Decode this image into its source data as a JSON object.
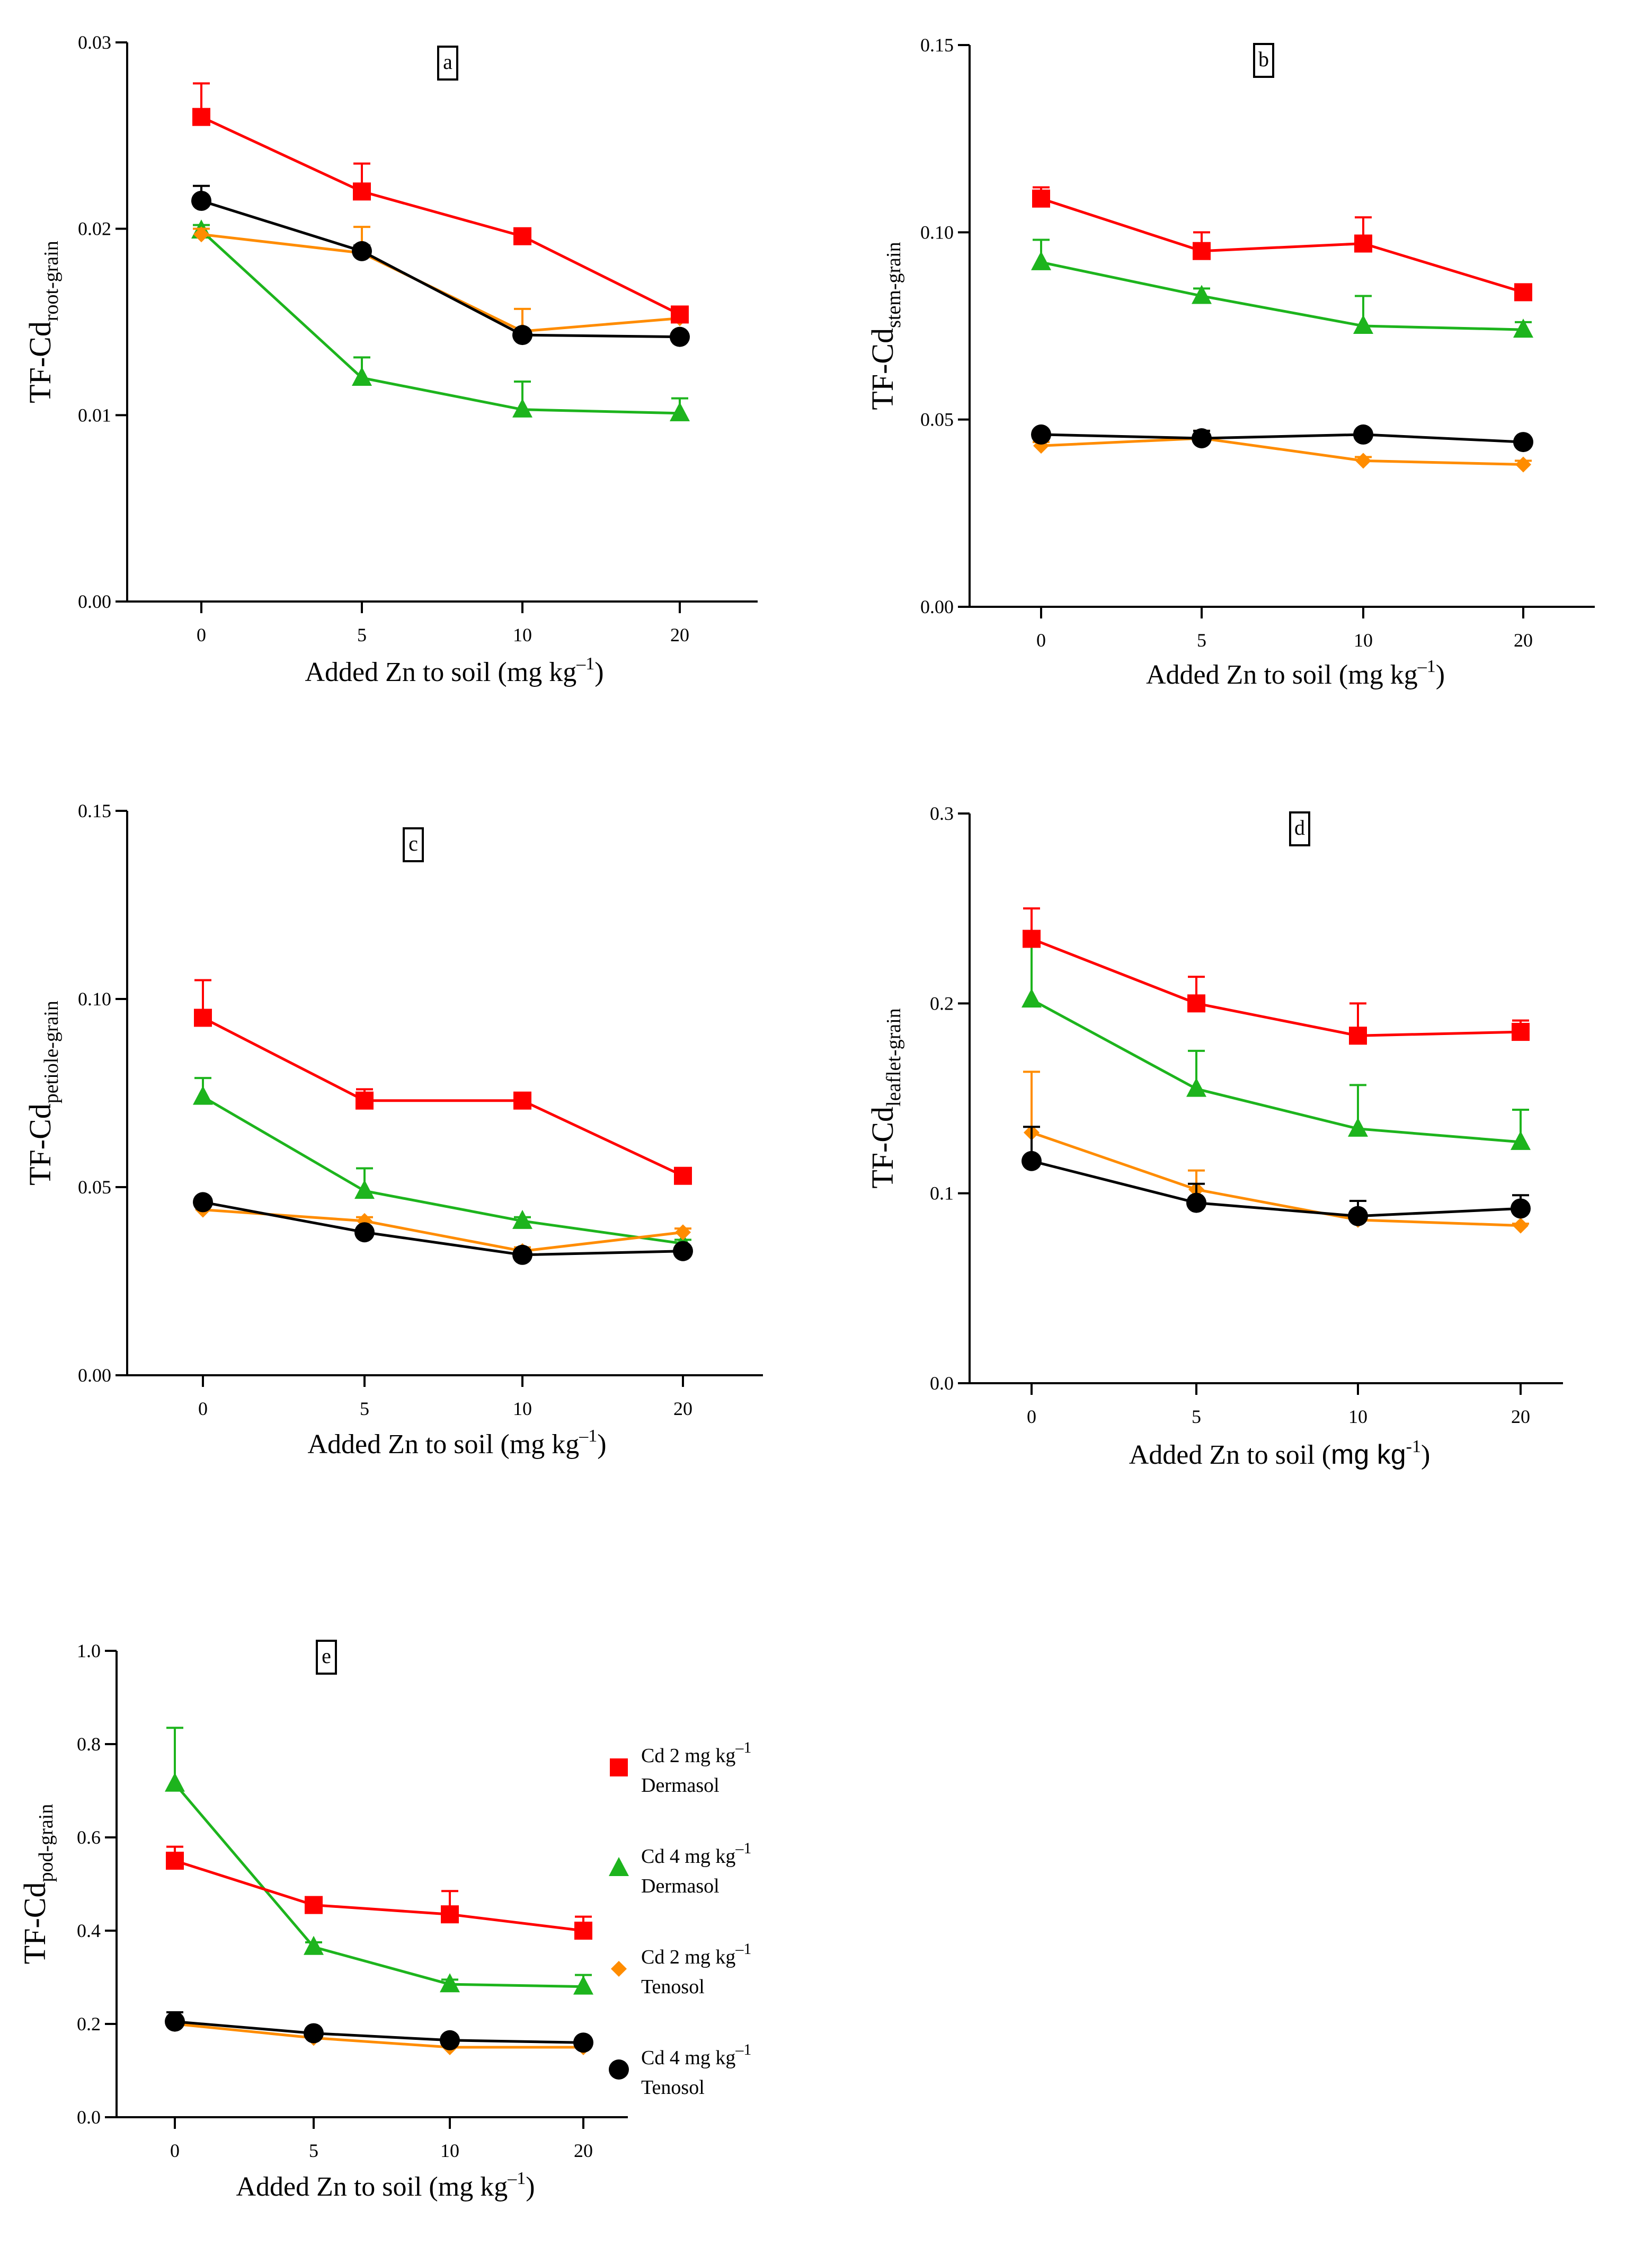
{
  "legend": [
    {
      "line1": "Cd 2 mg kg",
      "sup": "–1",
      "line2": "Dermasol",
      "color": "#ff0000",
      "marker": "square"
    },
    {
      "line1": "Cd 4 mg kg",
      "sup": "–1",
      "line2": "Dermasol",
      "color": "#1db41d",
      "marker": "triangle"
    },
    {
      "line1": "Cd 2 mg kg",
      "sup": "–1",
      "line2": "Tenosol",
      "color": "#ff8c00",
      "marker": "diamond"
    },
    {
      "line1": "Cd 4 mg kg",
      "sup": "–1",
      "line2": "Tenosol",
      "color": "#000000",
      "marker": "circle"
    }
  ],
  "chart_data": [
    {
      "type": "line",
      "panel_label": "a",
      "ylabel": "TF-Cd",
      "ylabel_sub": "root-grain",
      "xlabel": "Added Zn to soil (mg kg",
      "xlabel_sup": "–1",
      "xlabel_end": ")",
      "x": [
        0,
        5,
        10,
        20
      ],
      "xticks": [
        "0",
        "5",
        "10",
        "20"
      ],
      "ylim": [
        0,
        0.03
      ],
      "yticks": [
        "0.00",
        "0.01",
        "0.02",
        "0.03"
      ],
      "series": [
        {
          "name": "Cd 2 mg kg–1 Dermasol",
          "values": [
            0.026,
            0.022,
            0.0196,
            0.0154
          ],
          "errors": [
            0.0018,
            0.0015,
            0.0003,
            0.0003
          ]
        },
        {
          "name": "Cd 4 mg kg–1 Dermasol",
          "values": [
            0.0199,
            0.012,
            0.0103,
            0.0101
          ],
          "errors": [
            0.0003,
            0.0011,
            0.0015,
            0.0008
          ]
        },
        {
          "name": "Cd 2 mg kg–1 Tenosol",
          "values": [
            0.0197,
            0.0187,
            0.0145,
            0.0152
          ],
          "errors": [
            0.0003,
            0.0014,
            0.0012,
            0.0003
          ]
        },
        {
          "name": "Cd 4 mg kg–1 Tenosol",
          "values": [
            0.0215,
            0.0188,
            0.0143,
            0.0142
          ],
          "errors": [
            0.0008,
            0.0003,
            0.0002,
            0.0002
          ]
        }
      ]
    },
    {
      "type": "line",
      "panel_label": "b",
      "ylabel": "TF-Cd",
      "ylabel_sub": "stem-grain",
      "xlabel": "Added Zn to soil (mg kg",
      "xlabel_sup": "–1",
      "xlabel_end": ")",
      "x": [
        0,
        5,
        10,
        20
      ],
      "xticks": [
        "0",
        "5",
        "10",
        "20"
      ],
      "ylim": [
        0,
        0.15
      ],
      "yticks": [
        "0.00",
        "0.05",
        "0.10",
        "0.15"
      ],
      "series": [
        {
          "name": "Cd 2 mg kg–1 Dermasol",
          "values": [
            0.109,
            0.095,
            0.097,
            0.084
          ],
          "errors": [
            0.003,
            0.005,
            0.007,
            0.002
          ]
        },
        {
          "name": "Cd 4 mg kg–1 Dermasol",
          "values": [
            0.092,
            0.083,
            0.075,
            0.074
          ],
          "errors": [
            0.006,
            0.002,
            0.008,
            0.002
          ]
        },
        {
          "name": "Cd 2 mg kg–1 Tenosol",
          "values": [
            0.043,
            0.045,
            0.039,
            0.038
          ],
          "errors": [
            0.001,
            0.002,
            0.001,
            0.001
          ]
        },
        {
          "name": "Cd 4 mg kg–1 Tenosol",
          "values": [
            0.046,
            0.045,
            0.046,
            0.044
          ],
          "errors": [
            0.001,
            0.002,
            0.001,
            0.001
          ]
        }
      ]
    },
    {
      "type": "line",
      "panel_label": "c",
      "ylabel": "TF-Cd",
      "ylabel_sub": "petiole-grain",
      "xlabel": "Added Zn to soil (mg kg",
      "xlabel_sup": "–1",
      "xlabel_end": ")",
      "x": [
        0,
        5,
        10,
        20
      ],
      "xticks": [
        "0",
        "5",
        "10",
        "20"
      ],
      "ylim": [
        0,
        0.15
      ],
      "yticks": [
        "0.00",
        "0.05",
        "0.10",
        "0.15"
      ],
      "series": [
        {
          "name": "Cd 2 mg kg–1 Dermasol",
          "values": [
            0.095,
            0.073,
            0.073,
            0.053
          ],
          "errors": [
            0.01,
            0.003,
            0.001,
            0.001
          ]
        },
        {
          "name": "Cd 4 mg kg–1 Dermasol",
          "values": [
            0.074,
            0.049,
            0.041,
            0.035
          ],
          "errors": [
            0.005,
            0.006,
            0.001,
            0.001
          ]
        },
        {
          "name": "Cd 2 mg kg–1 Tenosol",
          "values": [
            0.044,
            0.041,
            0.033,
            0.038
          ],
          "errors": [
            0.001,
            0.001,
            0.001,
            0.001
          ]
        },
        {
          "name": "Cd 4 mg kg–1 Tenosol",
          "values": [
            0.046,
            0.038,
            0.032,
            0.033
          ],
          "errors": [
            0.001,
            0.001,
            0.001,
            0.001
          ]
        }
      ]
    },
    {
      "type": "line",
      "panel_label": "d",
      "ylabel": "TF-Cd",
      "ylabel_sub": "leaflet-grain",
      "xlabel": "Added Zn to soil (",
      "xlabel_unit": "mg kg",
      "xlabel_sup": "-1",
      "xlabel_end": ")",
      "x": [
        0,
        5,
        10,
        20
      ],
      "xticks": [
        "0",
        "5",
        "10",
        "20"
      ],
      "ylim": [
        0,
        0.3
      ],
      "yticks": [
        "0.0",
        "0.1",
        "0.2",
        "0.3"
      ],
      "series": [
        {
          "name": "Cd 2 mg kg–1 Dermasol",
          "values": [
            0.234,
            0.2,
            0.183,
            0.185
          ],
          "errors": [
            0.016,
            0.014,
            0.017,
            0.006
          ]
        },
        {
          "name": "Cd 4 mg kg–1 Dermasol",
          "values": [
            0.202,
            0.155,
            0.134,
            0.127
          ],
          "errors": [
            0.03,
            0.02,
            0.023,
            0.017
          ]
        },
        {
          "name": "Cd 2 mg kg–1 Tenosol",
          "values": [
            0.132,
            0.102,
            0.086,
            0.083
          ],
          "errors": [
            0.032,
            0.01,
            0.004,
            0.001
          ]
        },
        {
          "name": "Cd 4 mg kg–1 Tenosol",
          "values": [
            0.117,
            0.095,
            0.088,
            0.092
          ],
          "errors": [
            0.018,
            0.01,
            0.008,
            0.007
          ]
        }
      ]
    },
    {
      "type": "line",
      "panel_label": "e",
      "ylabel": "TF-Cd",
      "ylabel_sub": "pod-grain",
      "xlabel": "Added Zn to soil (mg kg",
      "xlabel_sup": "–1",
      "xlabel_end": ")",
      "x": [
        0,
        5,
        10,
        20
      ],
      "xticks": [
        "0",
        "5",
        "10",
        "20"
      ],
      "ylim": [
        0,
        1.0
      ],
      "yticks": [
        "0.0",
        "0.2",
        "0.4",
        "0.6",
        "0.8",
        "1.0"
      ],
      "series": [
        {
          "name": "Cd 2 mg kg–1 Dermasol",
          "values": [
            0.55,
            0.455,
            0.435,
            0.4
          ],
          "errors": [
            0.03,
            0.01,
            0.05,
            0.03
          ]
        },
        {
          "name": "Cd 4 mg kg–1 Dermasol",
          "values": [
            0.715,
            0.365,
            0.285,
            0.28
          ],
          "errors": [
            0.12,
            0.01,
            0.01,
            0.025
          ]
        },
        {
          "name": "Cd 2 mg kg–1 Tenosol",
          "values": [
            0.2,
            0.17,
            0.15,
            0.15
          ],
          "errors": [
            0.025,
            0.01,
            0.005,
            0.005
          ]
        },
        {
          "name": "Cd 4 mg kg–1 Tenosol",
          "values": [
            0.205,
            0.18,
            0.165,
            0.16
          ],
          "errors": [
            0.02,
            0.01,
            0.01,
            0.01
          ]
        }
      ]
    }
  ]
}
